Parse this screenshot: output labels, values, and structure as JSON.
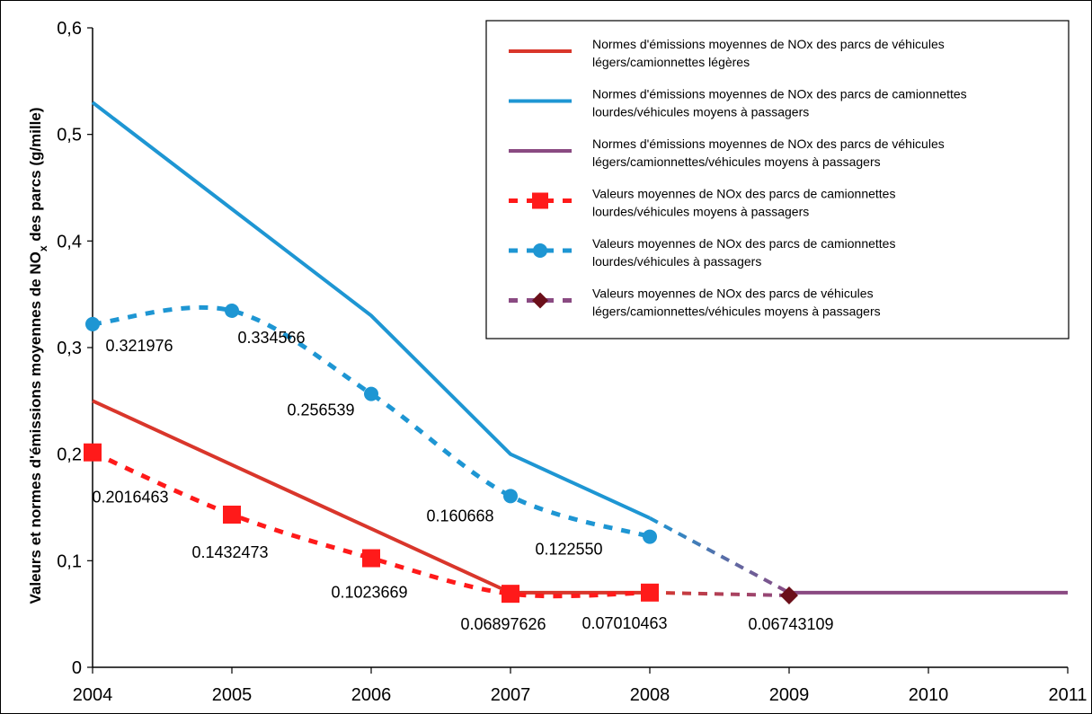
{
  "chart_data": {
    "type": "line",
    "title": "",
    "xlabel": "",
    "ylabel": "Valeurs et normes d'émissions moyennes de NO",
    "ylabel_sub": "x",
    "ylabel_tail": " des parcs (g/mille)",
    "xlim": [
      2004,
      2011
    ],
    "ylim": [
      0,
      0.6
    ],
    "x_ticks": [
      2004,
      2005,
      2006,
      2007,
      2008,
      2009,
      2010,
      2011
    ],
    "x_tick_labels": [
      "2004",
      "2005",
      "2006",
      "2007",
      "2008",
      "2009",
      "2010",
      "2011"
    ],
    "y_ticks": [
      0,
      0.1,
      0.2,
      0.3,
      0.4,
      0.5,
      0.6
    ],
    "y_tick_labels": [
      "0",
      "0,1",
      "0,2",
      "0,3",
      "0,4",
      "0,5",
      "0,6"
    ],
    "grid": false,
    "legend_position": "top-right",
    "series": [
      {
        "name": "Normes d'émissions moyennes de NOx des parcs de véhicules légers/camionnettes légères",
        "legend_lines": [
          "Normes d'émissions moyennes de NOx des parcs de véhicules",
          "légers/camionnettes légères"
        ],
        "style": "solid",
        "color": "#d9362b",
        "marker": "none",
        "x": [
          2004,
          2005,
          2006,
          2007,
          2008
        ],
        "y": [
          0.25,
          0.19,
          0.13,
          0.07,
          0.07
        ]
      },
      {
        "name": "Normes d'émissions moyennes de NOx des parcs de camionnettes lourdes/véhicules moyens à passagers",
        "legend_lines": [
          "Normes d'émissions moyennes de NOx des parcs de camionnettes",
          "lourdes/véhicules moyens à passagers"
        ],
        "style": "solid",
        "color": "#1e96d3",
        "marker": "none",
        "x": [
          2004,
          2005,
          2006,
          2007,
          2008
        ],
        "y": [
          0.53,
          0.43,
          0.33,
          0.2,
          0.14
        ]
      },
      {
        "name": "Normes d'émissions moyennes de NOx des parcs de véhicules légers/camionnettes/véhicules moyens à passagers",
        "legend_lines": [
          "Normes d'émissions moyennes de NOx des parcs de véhicules",
          "légers/camionnettes/véhicules moyens à passagers"
        ],
        "style": "solid",
        "color": "#8a4a82",
        "marker": "none",
        "x": [
          2009,
          2010,
          2011
        ],
        "y": [
          0.07,
          0.07,
          0.07
        ]
      },
      {
        "name": "Valeurs moyennes de NOx des parcs de camionnettes lourdes/véhicules moyens à passagers",
        "legend_lines": [
          "Valeurs moyennes de NOx des parcs de camionnettes",
          "lourdes/véhicules moyens à passagers"
        ],
        "style": "dashed",
        "color": "#ff1a1a",
        "marker": "square",
        "x": [
          2004,
          2005,
          2006,
          2007,
          2008
        ],
        "y": [
          0.2016463,
          0.1432473,
          0.1023669,
          0.06897626,
          0.07010463
        ],
        "labels": [
          "0.2016463",
          "0.1432473",
          "0.1023669",
          "0.06897626",
          "0.07010463"
        ]
      },
      {
        "name": "Valeurs moyennes de NOx des parcs de camionnettes lourdes/véhicules à passagers",
        "legend_lines": [
          "Valeurs moyennes de NOx des parcs de camionnettes",
          "lourdes/véhicules à passagers"
        ],
        "style": "dashed",
        "color": "#1e96d3",
        "marker": "circle",
        "x": [
          2004,
          2005,
          2006,
          2007,
          2008
        ],
        "y": [
          0.321976,
          0.334566,
          0.256539,
          0.160668,
          0.12255
        ],
        "labels": [
          "0.321976",
          "0.334566",
          "0.256539",
          "0.160668",
          "0.122550"
        ]
      },
      {
        "name": "Valeurs moyennes de NOx des parcs de véhicules légers/camionnettes/véhicules moyens à passagers",
        "legend_lines": [
          "Valeurs moyennes de NOx des parcs de véhicules",
          "légers/camionnettes/véhicules moyens à passagers"
        ],
        "style": "dashed",
        "color": "#8a4a82",
        "marker": "diamond",
        "marker_color": "#6b0f1a",
        "x": [
          2009
        ],
        "y": [
          0.06743109
        ],
        "labels": [
          "0.06743109"
        ]
      }
    ],
    "connectors": [
      {
        "x": [
          2007,
          2008,
          2009
        ],
        "y": [
          0.07,
          0.07,
          0.07
        ],
        "style": "solid",
        "gradient": [
          "#d9362b",
          "#8a4a82"
        ]
      },
      {
        "x": [
          2008,
          2009
        ],
        "y": [
          0.14,
          0.07
        ],
        "style": "dashed",
        "gradient": [
          "#1e96d3",
          "#8a4a82"
        ]
      },
      {
        "x": [
          2008,
          2009
        ],
        "y": [
          0.07010463,
          0.06743109
        ],
        "style": "dashed",
        "gradient": [
          "#d9362b",
          "#8a4a82"
        ]
      }
    ]
  }
}
